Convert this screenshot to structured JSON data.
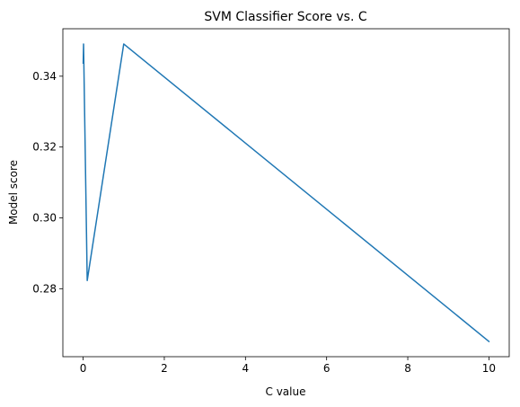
{
  "chart_data": {
    "type": "line",
    "title": "SVM Classifier Score vs. C",
    "xlabel": "C value",
    "ylabel": "Model score",
    "x": [
      0.001,
      0.01,
      0.1,
      1,
      10
    ],
    "series": [
      {
        "values": [
          0.3437,
          0.3491,
          0.2823,
          0.3491,
          0.2651
        ],
        "color": "#1f77b4"
      }
    ],
    "xlim": [
      -0.5,
      10.5
    ],
    "ylim": [
      0.2608,
      0.3534
    ],
    "xticks": [
      0,
      2,
      4,
      6,
      8,
      10
    ],
    "xtick_labels": [
      "0",
      "2",
      "4",
      "6",
      "8",
      "10"
    ],
    "yticks": [
      0.28,
      0.3,
      0.32,
      0.34
    ],
    "ytick_labels": [
      "0.28",
      "0.30",
      "0.32",
      "0.34"
    ],
    "grid": false,
    "legend": false
  }
}
